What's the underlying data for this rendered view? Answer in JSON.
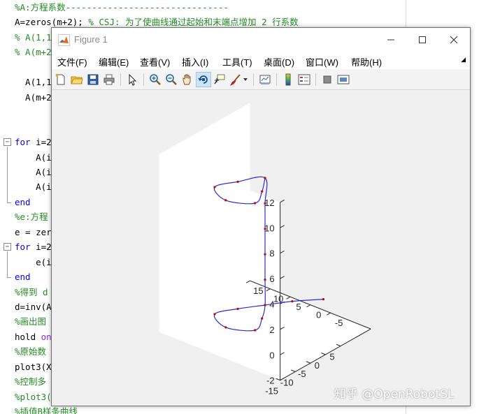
{
  "editor": {
    "lines": [
      {
        "segments": [
          {
            "t": "%A:方程系数-------------------------------",
            "c": "comment"
          }
        ]
      },
      {
        "segments": [
          {
            "t": "A=zeros(m+2); ",
            "c": "plain"
          },
          {
            "t": "% CSJ: 为了使曲线通过起始和末端点增加 2 行系数",
            "c": "comment"
          }
        ]
      },
      {
        "segments": [
          {
            "t": "% A(1,1",
            "c": "comment"
          }
        ]
      },
      {
        "segments": [
          {
            "t": "% A(m+2",
            "c": "comment"
          }
        ]
      },
      {
        "segments": []
      },
      {
        "segments": [
          {
            "t": "  A(1,1)",
            "c": "plain"
          }
        ]
      },
      {
        "segments": [
          {
            "t": "  A(m+2,",
            "c": "plain"
          }
        ]
      },
      {
        "segments": []
      },
      {
        "segments": []
      },
      {
        "segments": [
          {
            "t": "for",
            "c": "keyword"
          },
          {
            "t": " i=2",
            "c": "plain"
          }
        ]
      },
      {
        "segments": [
          {
            "t": "    A(i",
            "c": "plain"
          }
        ]
      },
      {
        "segments": [
          {
            "t": "    A(i",
            "c": "plain"
          }
        ]
      },
      {
        "segments": [
          {
            "t": "    A(i",
            "c": "plain"
          }
        ]
      },
      {
        "segments": [
          {
            "t": "end",
            "c": "keyword"
          }
        ]
      },
      {
        "segments": [
          {
            "t": "%e:方程",
            "c": "comment"
          }
        ]
      },
      {
        "segments": [
          {
            "t": "e = zer",
            "c": "plain"
          }
        ]
      },
      {
        "segments": [
          {
            "t": "for",
            "c": "keyword"
          },
          {
            "t": " i=2",
            "c": "plain"
          }
        ]
      },
      {
        "segments": [
          {
            "t": "    e(i",
            "c": "plain"
          }
        ]
      },
      {
        "segments": [
          {
            "t": "end",
            "c": "keyword"
          }
        ]
      },
      {
        "segments": [
          {
            "t": "%得到 d",
            "c": "comment"
          }
        ]
      },
      {
        "segments": [
          {
            "t": "d=inv(A",
            "c": "plain"
          }
        ]
      },
      {
        "segments": [
          {
            "t": "%画出图",
            "c": "comment"
          }
        ]
      },
      {
        "segments": [
          {
            "t": "hold ",
            "c": "plain"
          },
          {
            "t": "on",
            "c": "magenta"
          }
        ]
      },
      {
        "segments": [
          {
            "t": "%原始数",
            "c": "comment"
          }
        ]
      },
      {
        "segments": [
          {
            "t": "plot3(X",
            "c": "plain"
          }
        ]
      },
      {
        "segments": [
          {
            "t": "%控制多",
            "c": "comment"
          }
        ]
      },
      {
        "segments": [
          {
            "t": "%plot3(",
            "c": "comment"
          }
        ]
      },
      {
        "segments": [
          {
            "t": "%插值B样条曲线",
            "c": "comment"
          }
        ]
      }
    ]
  },
  "figure": {
    "title": "Figure 1",
    "menu": [
      "文件(F)",
      "编辑(E)",
      "查看(V)",
      "插入(I)",
      "工具(T)",
      "桌面(D)",
      "窗口(W)",
      "帮助(H)"
    ],
    "toolbar_icons": [
      "new-figure-icon",
      "open-file-icon",
      "save-icon",
      "print-icon",
      "pointer-icon",
      "zoom-in-icon",
      "zoom-out-icon",
      "pan-hand-icon",
      "rotate-3d-icon",
      "data-cursor-icon",
      "brush-icon",
      "dropdown-arrow-icon",
      "link-plot-icon",
      "colorbar-icon",
      "legend-icon",
      "hide-plot-tools-icon",
      "show-plot-tools-icon"
    ],
    "colors": {
      "curve": "#2b2bd6",
      "points": "#cc0000",
      "axis": "#262626",
      "background": "#f0f0f0",
      "pane": "#ffffff"
    }
  },
  "chart_data": {
    "type": "line",
    "view": "3d",
    "zlim": [
      -2,
      12
    ],
    "z_ticks": [
      "12",
      "10",
      "8",
      "6",
      "4",
      "2",
      "0",
      "-2"
    ],
    "x_ticks": [
      "-15",
      "-10",
      "-5",
      "0",
      "5"
    ],
    "y_ticks": [
      "15",
      "10",
      "5",
      "0",
      "-5"
    ],
    "grid": false,
    "series": [
      {
        "style": "blue smooth curve with red point markers",
        "points": [
          {
            "x": 10,
            "y": -7,
            "z": 0
          },
          {
            "x": 5,
            "y": -3,
            "z": 0
          },
          {
            "x": 0,
            "y": 0,
            "z": 0
          },
          {
            "x": -5,
            "y": 3,
            "z": 0
          },
          {
            "x": -10,
            "y": 5,
            "z": 0
          },
          {
            "x": -13,
            "y": 0,
            "z": 0
          },
          {
            "x": -10,
            "y": -5,
            "z": 0
          },
          {
            "x": -5,
            "y": -3,
            "z": 0
          },
          {
            "x": 0,
            "y": 0,
            "z": 0
          },
          {
            "x": 0,
            "y": 0,
            "z": 2
          },
          {
            "x": 0,
            "y": 0,
            "z": 4
          },
          {
            "x": 0,
            "y": 0,
            "z": 6
          },
          {
            "x": 0,
            "y": 0,
            "z": 8
          },
          {
            "x": 0,
            "y": 0,
            "z": 10
          },
          {
            "x": -5,
            "y": 3,
            "z": 10
          },
          {
            "x": -10,
            "y": 5,
            "z": 10
          },
          {
            "x": -13,
            "y": 0,
            "z": 10
          },
          {
            "x": -10,
            "y": -5,
            "z": 10
          },
          {
            "x": -5,
            "y": -3,
            "z": 10
          },
          {
            "x": 0,
            "y": 0,
            "z": 10
          }
        ]
      }
    ]
  },
  "watermark": "知乎 @OpenRobotSL"
}
